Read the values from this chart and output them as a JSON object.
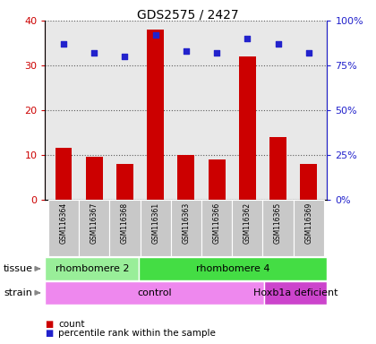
{
  "title": "GDS2575 / 2427",
  "samples": [
    "GSM116364",
    "GSM116367",
    "GSM116368",
    "GSM116361",
    "GSM116363",
    "GSM116366",
    "GSM116362",
    "GSM116365",
    "GSM116369"
  ],
  "counts": [
    11.5,
    9.5,
    8.0,
    38.0,
    10.0,
    9.0,
    32.0,
    14.0,
    8.0
  ],
  "percentiles": [
    87,
    82,
    80,
    92,
    83,
    82,
    90,
    87,
    82
  ],
  "bar_color": "#cc0000",
  "dot_color": "#2222cc",
  "ylim_left": [
    0,
    40
  ],
  "ylim_right": [
    0,
    100
  ],
  "yticks_left": [
    0,
    10,
    20,
    30,
    40
  ],
  "ytick_labels_left": [
    "0",
    "10",
    "20",
    "30",
    "40"
  ],
  "yticks_right": [
    0,
    25,
    50,
    75,
    100
  ],
  "ytick_labels_right": [
    "0%",
    "25%",
    "50%",
    "75%",
    "100%"
  ],
  "tissue_groups": [
    {
      "label": "rhombomere 2",
      "start": 0,
      "end": 3,
      "color": "#99ee99"
    },
    {
      "label": "rhombomere 4",
      "start": 3,
      "end": 9,
      "color": "#44dd44"
    }
  ],
  "strain_groups": [
    {
      "label": "control",
      "start": 0,
      "end": 7,
      "color": "#ee88ee"
    },
    {
      "label": "Hoxb1a deficient",
      "start": 7,
      "end": 9,
      "color": "#cc44cc"
    }
  ],
  "legend_count_label": "count",
  "legend_percentile_label": "percentile rank within the sample",
  "tick_label_color_left": "#cc0000",
  "tick_label_color_right": "#2222cc",
  "plot_bg_color": "#e8e8e8",
  "sample_bg_color": "#c8c8c8"
}
